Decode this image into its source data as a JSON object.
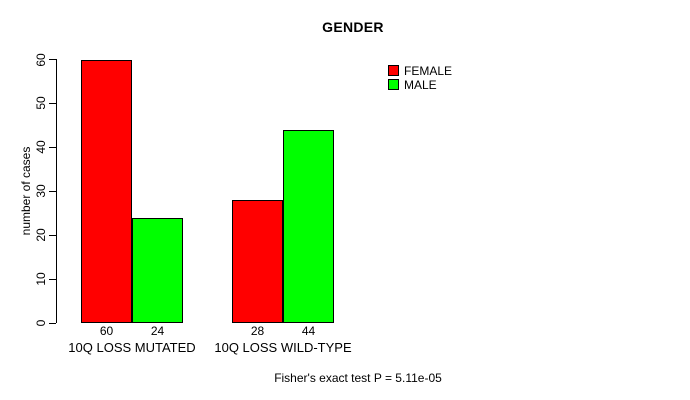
{
  "chart_data": {
    "type": "bar",
    "title": "GENDER",
    "ylabel": "number of cases",
    "xlabel": "",
    "categories": [
      "10Q LOSS MUTATED",
      "10Q LOSS WILD-TYPE"
    ],
    "series": [
      {
        "name": "FEMALE",
        "color": "#ff0000",
        "values": [
          60,
          28
        ]
      },
      {
        "name": "MALE",
        "color": "#00ff00",
        "values": [
          24,
          44
        ]
      }
    ],
    "bar_value_labels": [
      [
        60,
        24
      ],
      [
        28,
        44
      ]
    ],
    "yticks": [
      0,
      10,
      20,
      30,
      40,
      50,
      60
    ],
    "ylim": [
      0,
      60
    ],
    "grid": false,
    "legend_position": "top-right",
    "bar_border_color": "#000000",
    "background_color": "#ffffff",
    "caption": "Fisher's exact test P = 5.11e-05"
  }
}
